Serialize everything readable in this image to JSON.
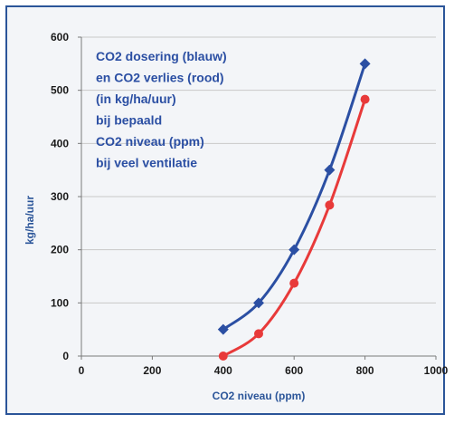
{
  "chart_data": {
    "type": "line",
    "xlabel": "CO2 niveau (ppm)",
    "ylabel": "kg/ha/uur",
    "xlim": [
      0,
      1000
    ],
    "ylim": [
      0,
      600
    ],
    "x_ticks": [
      "0",
      "200",
      "400",
      "600",
      "800",
      "1000"
    ],
    "y_ticks": [
      "0",
      "100",
      "200",
      "300",
      "400",
      "500",
      "600"
    ],
    "grid": true,
    "annotation": [
      "CO2 dosering (blauw)",
      "en CO2 verlies (rood)",
      "(in kg/ha/uur)",
      "bij bepaald",
      "CO2 niveau (ppm)",
      "bij veel ventilatie"
    ],
    "series": [
      {
        "color": "#2b4fa3",
        "marker": "diamond",
        "points": [
          [
            400,
            50
          ],
          [
            500,
            100
          ],
          [
            600,
            200
          ],
          [
            700,
            350
          ],
          [
            800,
            550
          ]
        ]
      },
      {
        "color": "#e83a3a",
        "marker": "circle",
        "points": [
          [
            400,
            0
          ],
          [
            500,
            42
          ],
          [
            600,
            137
          ],
          [
            700,
            284
          ],
          [
            800,
            483
          ]
        ]
      }
    ]
  }
}
